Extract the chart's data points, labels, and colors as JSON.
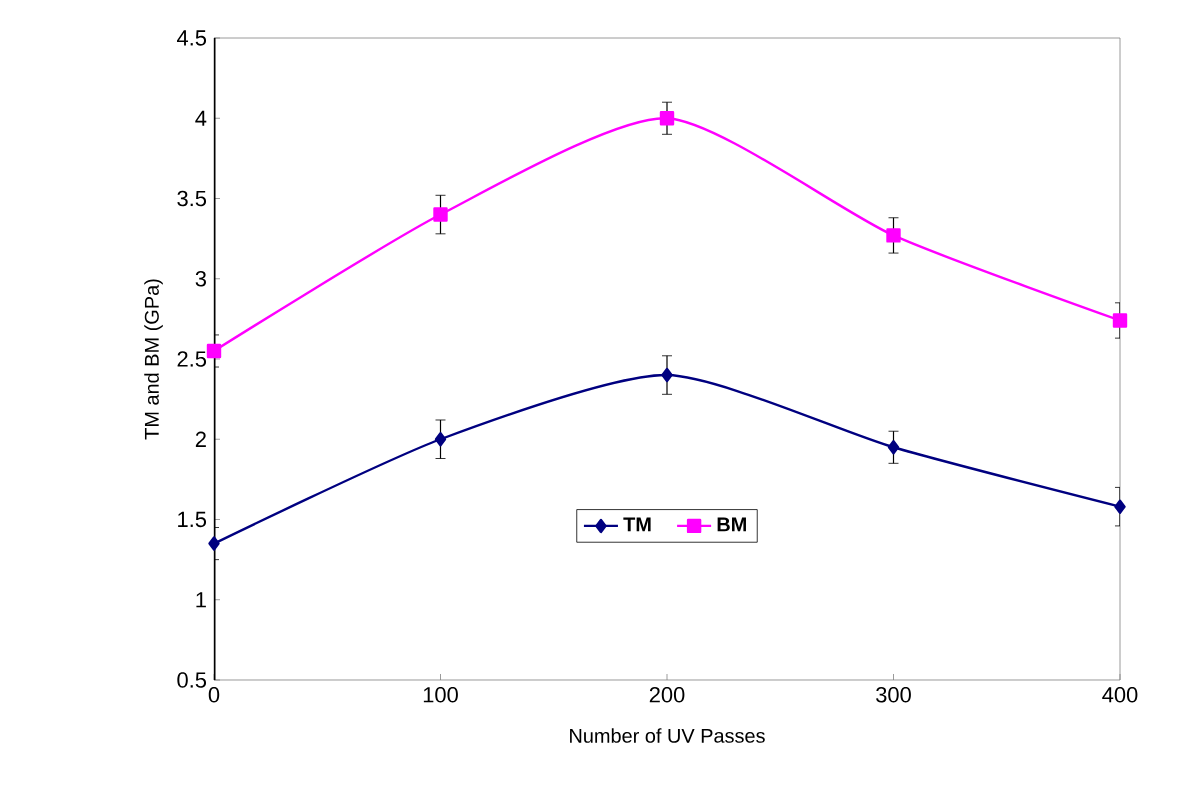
{
  "chart_data": {
    "type": "line",
    "xlabel": "Number of UV Passes",
    "ylabel": "TM and BM (GPa)",
    "x": [
      0,
      100,
      200,
      300,
      400
    ],
    "series": [
      {
        "name": "TM",
        "color": "#000080",
        "marker": "diamond",
        "values": [
          1.35,
          2.0,
          2.4,
          1.95,
          1.58
        ],
        "errors": [
          0.1,
          0.12,
          0.12,
          0.1,
          0.12
        ]
      },
      {
        "name": "BM",
        "color": "#ff00ff",
        "marker": "square",
        "values": [
          2.55,
          3.4,
          4.0,
          3.27,
          2.74
        ],
        "errors": [
          0.1,
          0.12,
          0.1,
          0.11,
          0.11
        ]
      }
    ],
    "xlim": [
      0,
      400
    ],
    "xticks": [
      0,
      100,
      200,
      300,
      400
    ],
    "ylim": [
      0.5,
      4.5
    ],
    "yticks": [
      0.5,
      1,
      1.5,
      2,
      2.5,
      3,
      3.5,
      4,
      4.5
    ],
    "legend": "bottom",
    "grid": false,
    "line_style": "solid"
  }
}
